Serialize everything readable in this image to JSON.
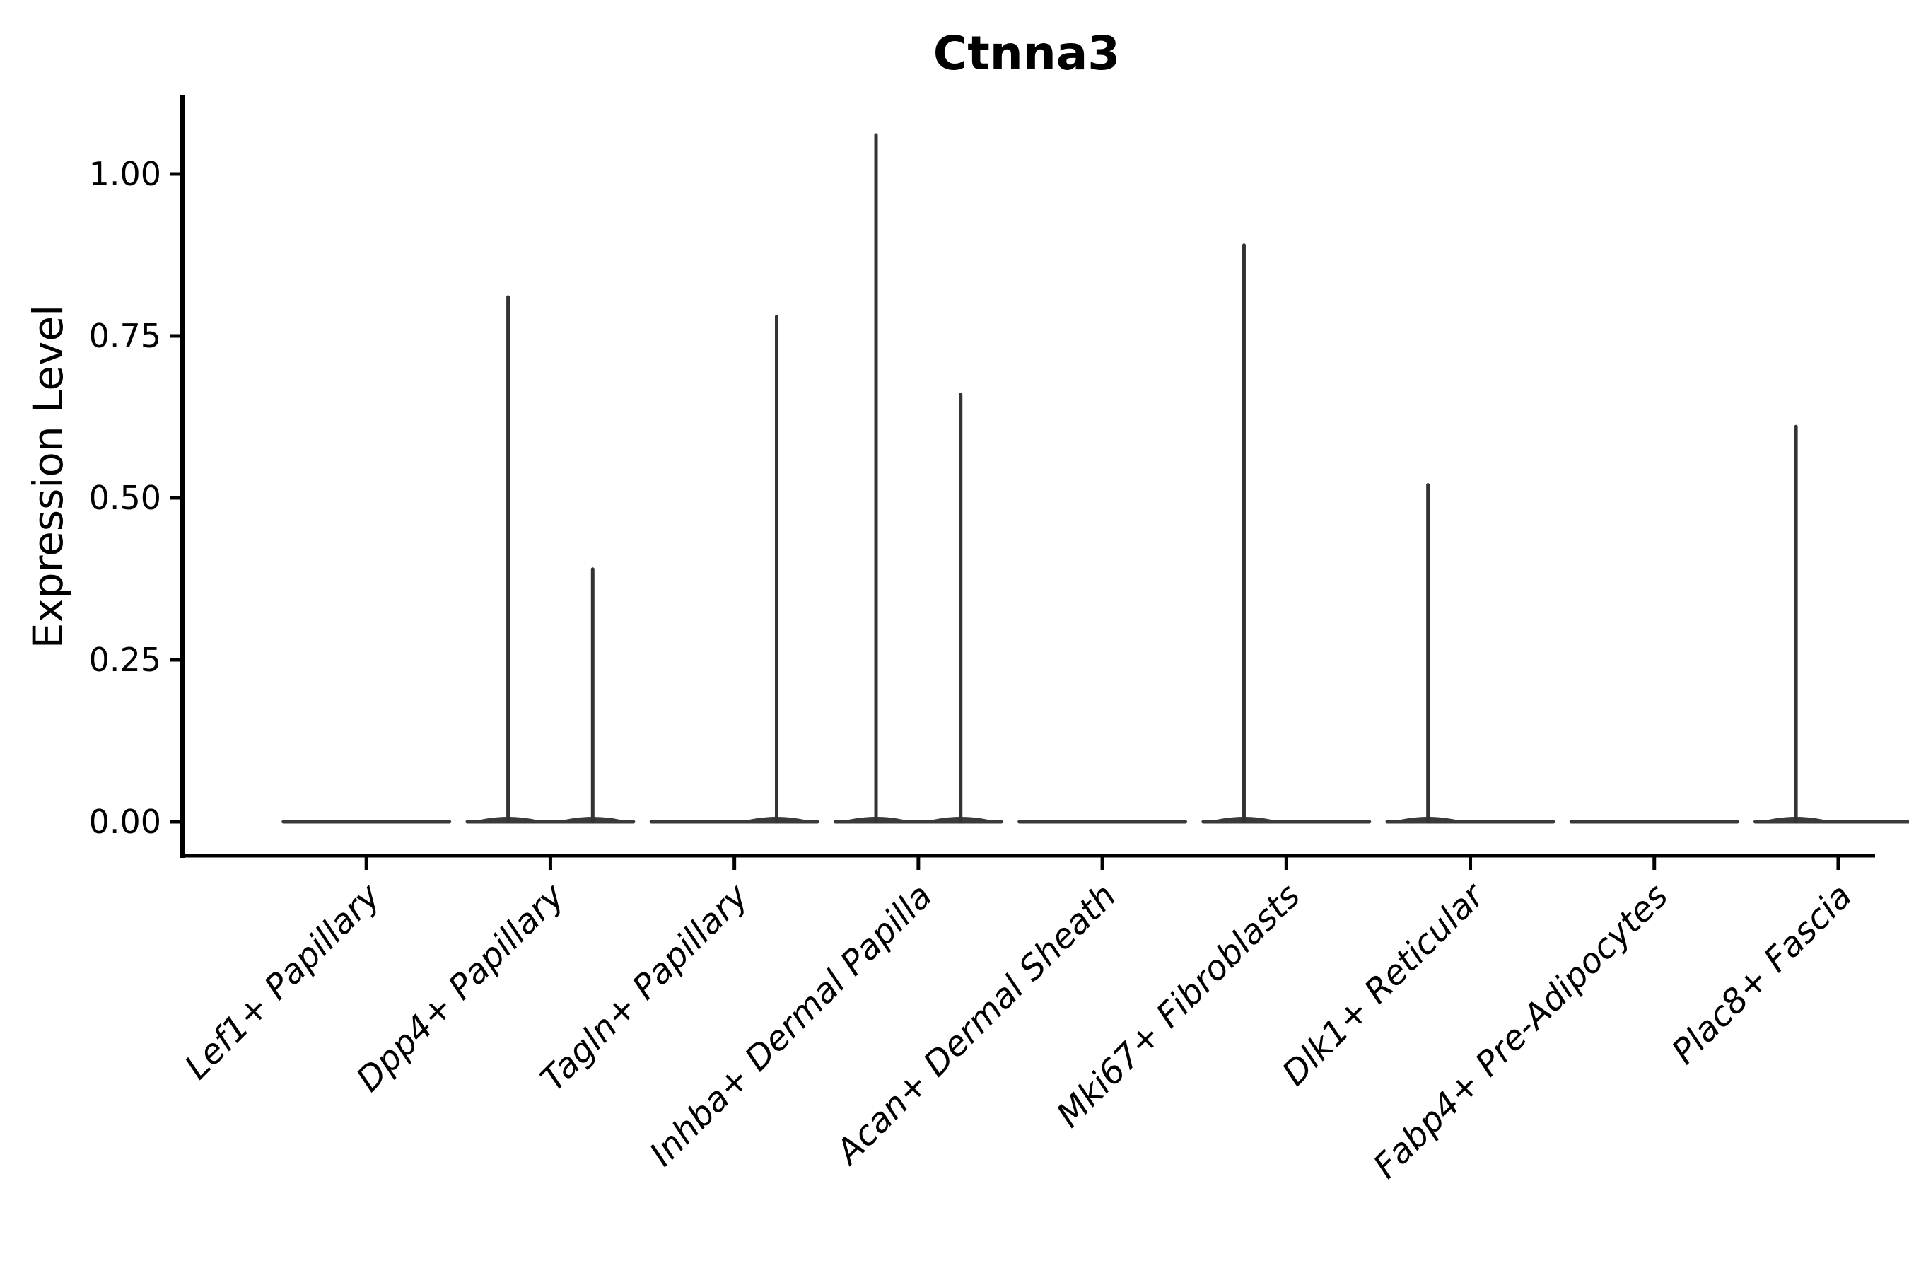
{
  "figure": {
    "title": "Ctnna3",
    "ylabel": "Expression Level",
    "xlabel": "",
    "background": "#ffffff",
    "axis_color": "#000000",
    "violin_color": "#3a3a3a",
    "spike_color": "#333333"
  },
  "chart_data": {
    "type": "violin",
    "title": "Ctnna3",
    "xlabel": "",
    "ylabel": "Expression Level",
    "ylim": [
      -0.052,
      1.119
    ],
    "grid": false,
    "legend": "none",
    "yticks": [
      {
        "value": 0.0,
        "label": "0.00"
      },
      {
        "value": 0.25,
        "label": "0.25"
      },
      {
        "value": 0.5,
        "label": "0.50"
      },
      {
        "value": 0.75,
        "label": "0.75"
      },
      {
        "value": 1.0,
        "label": "1.00"
      }
    ],
    "categories": [
      "Lef1+ Papillary",
      "Dpp4+ Papillary",
      "Tagln+ Papillary",
      "Inhba+ Dermal Papilla",
      "Acan+ Dermal Sheath",
      "Mki67+ Fibroblasts",
      "Dlk1+ Reticular",
      "Fabp4+ Pre-Adipocytes",
      "Plac8+ Fascia"
    ],
    "violins": [
      {
        "category": "Lef1+ Papillary",
        "baseline_value": 0.0,
        "spikes": []
      },
      {
        "category": "Dpp4+ Papillary",
        "baseline_value": 0.0,
        "spikes": [
          {
            "offset": -0.23,
            "max": 0.81
          },
          {
            "offset": 0.23,
            "max": 0.39
          }
        ]
      },
      {
        "category": "Tagln+ Papillary",
        "baseline_value": 0.0,
        "spikes": [
          {
            "offset": 0.23,
            "max": 0.78
          }
        ]
      },
      {
        "category": "Inhba+ Dermal Papilla",
        "baseline_value": 0.0,
        "spikes": [
          {
            "offset": -0.23,
            "max": 1.06
          },
          {
            "offset": 0.23,
            "max": 0.66
          }
        ]
      },
      {
        "category": "Acan+ Dermal Sheath",
        "baseline_value": 0.0,
        "spikes": []
      },
      {
        "category": "Mki67+ Fibroblasts",
        "baseline_value": 0.0,
        "spikes": [
          {
            "offset": -0.23,
            "max": 0.89
          }
        ]
      },
      {
        "category": "Dlk1+ Reticular",
        "baseline_value": 0.0,
        "spikes": [
          {
            "offset": -0.23,
            "max": 0.52
          }
        ]
      },
      {
        "category": "Fabp4+ Pre-Adipocytes",
        "baseline_value": 0.0,
        "spikes": []
      },
      {
        "category": "Plac8+ Fascia",
        "baseline_value": 0.0,
        "spikes": [
          {
            "offset": -0.23,
            "max": 0.61
          }
        ]
      }
    ]
  }
}
